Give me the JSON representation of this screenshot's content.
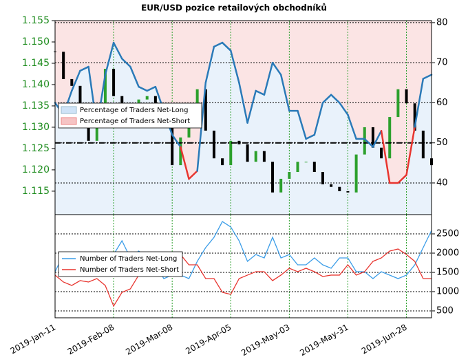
{
  "chart_data": [
    {
      "type": "candle-sentiment",
      "title": "EUR/USD pozice retailových obchodníků",
      "x": [
        "2019-Jan-11",
        "2019-Jan-15",
        "2019-Jan-19",
        "2019-Jan-23",
        "2019-Jan-27",
        "2019-Jan-31",
        "2019-Feb-04",
        "2019-Feb-08",
        "2019-Feb-12",
        "2019-Feb-16",
        "2019-Feb-20",
        "2019-Feb-24",
        "2019-Feb-28",
        "2019-Mar-04",
        "2019-Mar-08",
        "2019-Mar-12",
        "2019-Mar-16",
        "2019-Mar-20",
        "2019-Mar-24",
        "2019-Mar-28",
        "2019-Apr-01",
        "2019-Apr-05",
        "2019-Apr-09",
        "2019-Apr-13",
        "2019-Apr-17",
        "2019-Apr-21",
        "2019-Apr-25",
        "2019-Apr-29",
        "2019-May-03",
        "2019-May-07",
        "2019-May-11",
        "2019-May-15",
        "2019-May-19",
        "2019-May-23",
        "2019-May-27",
        "2019-May-31",
        "2019-Jun-04",
        "2019-Jun-08",
        "2019-Jun-12",
        "2019-Jun-16",
        "2019-Jun-20",
        "2019-Jun-24",
        "2019-Jun-28",
        "2019-Jul-02",
        "2019-Jul-06",
        "2019-Jul-10"
      ],
      "xticks": [
        "2019-Jan-11",
        "2019-Feb-08",
        "2019-Mar-08",
        "2019-Apr-05",
        "2019-May-03",
        "2019-May-31",
        "2019-Jun-28"
      ],
      "price": {
        "color_up": "#2ca02c",
        "color_down": "#000000",
        "values": [
          1.1477,
          1.1413,
          1.1397,
          1.134,
          1.1268,
          1.1356,
          1.1437,
          1.1373,
          1.13,
          1.1324,
          1.1365,
          1.1373,
          1.1348,
          1.1308,
          1.1211,
          1.1276,
          1.1324,
          1.1389,
          1.1292,
          1.1227,
          1.1211,
          1.1268,
          1.126,
          1.1219,
          1.1244,
          1.1219,
          1.1147,
          1.1179,
          1.1195,
          1.1219,
          1.1219,
          1.1195,
          1.1166,
          1.116,
          1.115,
          1.1147,
          1.1236,
          1.13,
          1.1252,
          1.1227,
          1.1324,
          1.1389,
          1.1356,
          1.1292,
          1.1227,
          1.1211
        ]
      },
      "ylim": [
        1.1095,
        1.155
      ],
      "yticks": [
        1.115,
        {
          "value": 1.12,
          "label": "1.120"
        },
        1.125,
        {
          "value": 1.13,
          "label": "1.130"
        },
        1.135,
        {
          "value": 1.14,
          "label": "1.140"
        },
        1.145,
        {
          "value": 1.15,
          "label": "1.150"
        },
        1.155
      ],
      "series": [
        {
          "name": "Percentage of Traders Net-Long",
          "color": "#2a7ab8",
          "color_below": "#e8352f",
          "axis": "y2",
          "values": [
            60,
            57,
            63,
            68,
            69,
            54,
            67,
            75,
            71,
            69,
            64,
            63,
            64,
            58,
            52,
            49,
            41,
            43,
            65,
            74,
            75,
            73,
            65,
            55,
            63,
            62,
            70,
            67,
            58,
            58,
            51,
            52,
            60,
            62,
            60,
            57,
            51,
            51,
            49,
            53,
            40,
            40,
            42,
            54,
            66,
            67
          ]
        }
      ],
      "legend": [
        {
          "name": "Percentage of Traders Net-Long",
          "color": "#cfe3f7"
        },
        {
          "name": "Percentage of Traders Net-Short",
          "color": "#f6c4c4"
        }
      ],
      "y2lim": [
        32.1,
        80.5
      ],
      "y2ticks": [
        40,
        50,
        60,
        70,
        80
      ],
      "reference_line": 50,
      "grid": true
    },
    {
      "type": "line",
      "series": [
        {
          "name": "Number of Traders Net-Long",
          "color": "#3b9de8",
          "values": [
            1518,
            1964,
            1875,
            1518,
            1696,
            1875,
            1518,
            1964,
            2321,
            1875,
            2054,
            1875,
            1696,
            1339,
            1429,
            1429,
            1339,
            1786,
            2143,
            2411,
            2821,
            2679,
            2321,
            1786,
            1964,
            1875,
            2411,
            1875,
            1964,
            1696,
            1696,
            1875,
            1696,
            1607,
            1875,
            1875,
            1518,
            1518,
            1339,
            1518,
            1429,
            1339,
            1429,
            1696,
            2143,
            2589
          ]
        },
        {
          "name": "Number of Traders Net-Short",
          "color": "#e8352f",
          "values": [
            1429,
            1250,
            1161,
            1286,
            1250,
            1339,
            1161,
            625,
            982,
            1071,
            1429,
            1518,
            1607,
            1607,
            1607,
            1964,
            1696,
            1696,
            1339,
            1339,
            982,
            929,
            1339,
            1429,
            1518,
            1518,
            1286,
            1429,
            1607,
            1518,
            1607,
            1518,
            1393,
            1429,
            1429,
            1696,
            1429,
            1518,
            1786,
            1875,
            2054,
            2107,
            1964,
            1786,
            1339,
            1339
          ]
        }
      ],
      "ylim": [
        321,
        3000
      ],
      "yticks": [
        500,
        1000,
        1500,
        2000,
        2500
      ],
      "grid": true
    }
  ]
}
